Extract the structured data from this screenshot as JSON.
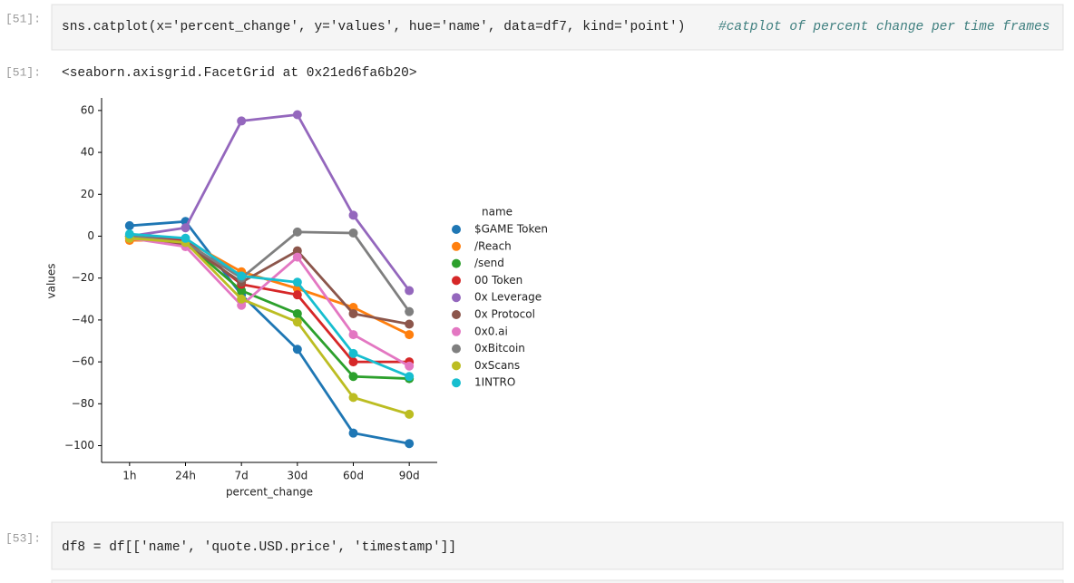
{
  "cells": [
    {
      "prompt": "[51]:",
      "code": "sns.catplot(x='percent_change', y='values', hue='name', data=df7, kind='point')",
      "comment": "#catplot of percent change per time frames",
      "output_prompt": "[51]:",
      "output": "<seaborn.axisgrid.FacetGrid at 0x21ed6fa6b20>"
    },
    {
      "prompt": "[53]:",
      "code": "df8 = df[['name', 'quote.USD.price', 'timestamp']]"
    }
  ],
  "chart_data": {
    "type": "point",
    "x_label": "percent_change",
    "y_label": "values",
    "legend_title": "name",
    "categories": [
      "1h",
      "24h",
      "7d",
      "30d",
      "60d",
      "90d"
    ],
    "ylim": [
      -108,
      66
    ],
    "yticks": [
      {
        "value": -100,
        "label": "−100"
      },
      {
        "value": -80,
        "label": "−80"
      },
      {
        "value": -60,
        "label": "−60"
      },
      {
        "value": -40,
        "label": "−40"
      },
      {
        "value": -20,
        "label": "−20"
      },
      0,
      20,
      40,
      60
    ],
    "series": [
      {
        "name": "$GAME Token",
        "color": "#1f77b4",
        "values": [
          5,
          7,
          -28,
          -54,
          -94,
          -99
        ]
      },
      {
        "name": "/Reach",
        "color": "#ff7f0e",
        "values": [
          -2,
          -2,
          -17,
          -25,
          -34,
          -47
        ]
      },
      {
        "name": "/send",
        "color": "#2ca02c",
        "values": [
          0,
          -3,
          -26,
          -37,
          -67,
          -68
        ]
      },
      {
        "name": "00 Token",
        "color": "#d62728",
        "values": [
          0,
          -2,
          -23,
          -28,
          -60,
          -60
        ]
      },
      {
        "name": "0x Leverage",
        "color": "#9467bd",
        "values": [
          0,
          4,
          55,
          58,
          10,
          -26
        ]
      },
      {
        "name": "0x Protocol",
        "color": "#8c564b",
        "values": [
          0,
          -4,
          -22,
          -7,
          -37,
          -42
        ]
      },
      {
        "name": "0x0.ai",
        "color": "#e377c2",
        "values": [
          -1,
          -5,
          -33,
          -10,
          -47,
          -62
        ]
      },
      {
        "name": "0xBitcoin",
        "color": "#7f7f7f",
        "values": [
          0,
          -3,
          -20,
          2,
          1.5,
          -36
        ]
      },
      {
        "name": "0xScans",
        "color": "#bcbd22",
        "values": [
          -1,
          -3,
          -30,
          -41,
          -77,
          -85
        ]
      },
      {
        "name": "1INTRO",
        "color": "#17becf",
        "values": [
          1,
          -1,
          -19,
          -22,
          -56,
          -67
        ]
      }
    ]
  }
}
